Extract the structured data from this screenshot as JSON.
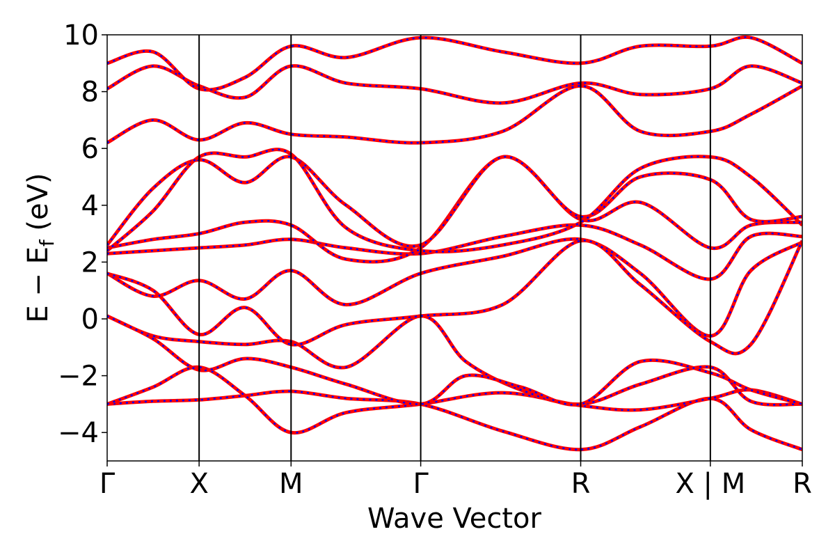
{
  "chart_data": {
    "type": "line",
    "title": "",
    "xlabel": "Wave Vector",
    "ylabel_main": "E − E",
    "ylabel_sub": "f",
    "ylabel_unit": " (eV)",
    "ylim": [
      -5,
      10
    ],
    "y_ticks": [
      -4,
      -2,
      0,
      2,
      4,
      6,
      8,
      10
    ],
    "y_tick_labels": [
      "−4",
      "−2",
      "0",
      "2",
      "4",
      "6",
      "8",
      "10"
    ],
    "x_ticks": [
      0,
      1,
      2,
      3.41,
      5.15,
      6.56,
      7.56
    ],
    "x_tick_labels": [
      "Γ",
      "X",
      "M",
      "Γ",
      "R",
      "X | M",
      "R"
    ],
    "xlim": [
      0,
      7.56
    ],
    "grid": false,
    "line_color": "#ff0000",
    "dash_color": "#0000ff",
    "series": [
      {
        "x": [
          0,
          0.5,
          1,
          1.5,
          2,
          2.6,
          3.41,
          4.3,
          5.15,
          5.8,
          6.56,
          7.0,
          7.56
        ],
        "y": [
          -3.0,
          -2.9,
          -2.85,
          -2.7,
          -2.55,
          -2.8,
          -3.0,
          -3.95,
          -4.6,
          -3.8,
          -2.8,
          -3.9,
          -4.6
        ]
      },
      {
        "x": [
          0,
          0.5,
          1,
          1.5,
          2,
          2.6,
          3.41,
          4.3,
          5.15,
          5.8,
          6.56,
          7.0,
          7.56
        ],
        "y": [
          -3.0,
          -2.4,
          -1.7,
          -2.7,
          -4.0,
          -3.3,
          -3.0,
          -2.6,
          -3.05,
          -3.2,
          -2.8,
          -2.5,
          -3.0
        ]
      },
      {
        "x": [
          0,
          0.5,
          1,
          1.5,
          2,
          2.6,
          3.41,
          3.9,
          4.5,
          5.15,
          5.8,
          6.56,
          7.0,
          7.56
        ],
        "y": [
          0.1,
          -0.6,
          -0.8,
          -0.9,
          -0.8,
          -1.7,
          0.1,
          -1.5,
          -2.5,
          -3.0,
          -2.3,
          -1.7,
          -2.9,
          -3.0
        ]
      },
      {
        "x": [
          0,
          0.5,
          1,
          1.5,
          2,
          2.6,
          3.41,
          3.9,
          4.5,
          5.15,
          5.8,
          6.56,
          7.0,
          7.56
        ],
        "y": [
          0.1,
          -0.7,
          -1.8,
          -1.4,
          -1.7,
          -2.3,
          -3.0,
          -2.0,
          -2.4,
          -3.0,
          -1.5,
          -1.9,
          -2.5,
          -3.0
        ]
      },
      {
        "x": [
          0,
          0.5,
          1,
          1.5,
          2,
          2.6,
          3.41,
          4.3,
          5.15,
          5.8,
          6.56,
          7.0,
          7.56
        ],
        "y": [
          1.6,
          0.8,
          1.35,
          0.7,
          1.7,
          0.5,
          1.6,
          2.2,
          2.8,
          1.6,
          -0.6,
          1.7,
          2.7
        ]
      },
      {
        "x": [
          0,
          0.5,
          1,
          1.5,
          2,
          2.6,
          3.41,
          4.3,
          5.15,
          5.8,
          6.56,
          7.0,
          7.56
        ],
        "y": [
          1.6,
          1.0,
          -0.55,
          0.4,
          -0.9,
          -0.2,
          0.1,
          0.5,
          2.75,
          1.2,
          -0.8,
          -0.9,
          2.75
        ]
      },
      {
        "x": [
          0,
          0.5,
          1,
          1.5,
          2,
          2.6,
          3.41,
          4.3,
          5.15,
          5.8,
          6.56,
          7.0,
          7.56
        ],
        "y": [
          2.3,
          2.4,
          2.5,
          2.6,
          2.8,
          2.5,
          2.3,
          2.9,
          3.3,
          2.6,
          1.4,
          2.9,
          2.9
        ]
      },
      {
        "x": [
          0,
          0.5,
          1,
          1.5,
          2,
          2.6,
          3.41,
          4.3,
          5.15,
          5.8,
          6.56,
          7.0,
          7.56
        ],
        "y": [
          2.5,
          2.8,
          3.0,
          3.4,
          3.3,
          2.1,
          2.5,
          5.7,
          3.5,
          4.1,
          2.5,
          3.3,
          3.4
        ]
      },
      {
        "x": [
          0,
          0.5,
          1,
          1.5,
          2,
          2.6,
          3.41,
          4.3,
          5.15,
          5.8,
          6.56,
          7.0,
          7.56
        ],
        "y": [
          2.6,
          4.6,
          5.6,
          4.8,
          5.7,
          4.0,
          2.6,
          5.7,
          3.6,
          5.0,
          4.9,
          3.5,
          3.6
        ]
      },
      {
        "x": [
          0,
          0.5,
          1,
          1.5,
          2,
          2.6,
          3.41,
          4.3,
          5.15,
          5.8,
          6.56,
          7.0,
          7.56
        ],
        "y": [
          2.4,
          3.8,
          5.7,
          5.7,
          5.8,
          3.2,
          2.4,
          2.6,
          3.4,
          5.3,
          5.7,
          5.0,
          3.3
        ]
      },
      {
        "x": [
          0,
          0.5,
          1,
          1.5,
          2,
          2.6,
          3.41,
          4.3,
          5.15,
          5.8,
          6.56,
          7.0,
          7.56
        ],
        "y": [
          6.2,
          7.0,
          6.3,
          6.9,
          6.5,
          6.4,
          6.2,
          6.6,
          8.2,
          6.6,
          6.6,
          7.2,
          8.2
        ]
      },
      {
        "x": [
          0,
          0.5,
          1,
          1.5,
          2,
          2.6,
          3.41,
          4.3,
          5.15,
          5.8,
          6.56,
          7.0,
          7.56
        ],
        "y": [
          8.1,
          8.9,
          8.2,
          7.8,
          8.9,
          8.3,
          8.1,
          7.6,
          8.3,
          7.9,
          8.1,
          8.9,
          8.3
        ]
      },
      {
        "x": [
          0,
          0.5,
          1,
          1.5,
          2,
          2.6,
          3.41,
          4.3,
          5.15,
          5.8,
          6.56,
          7.0,
          7.56
        ],
        "y": [
          9.0,
          9.4,
          8.1,
          8.5,
          9.6,
          9.2,
          9.9,
          9.4,
          9.0,
          9.6,
          9.6,
          9.9,
          9.0
        ]
      }
    ]
  }
}
